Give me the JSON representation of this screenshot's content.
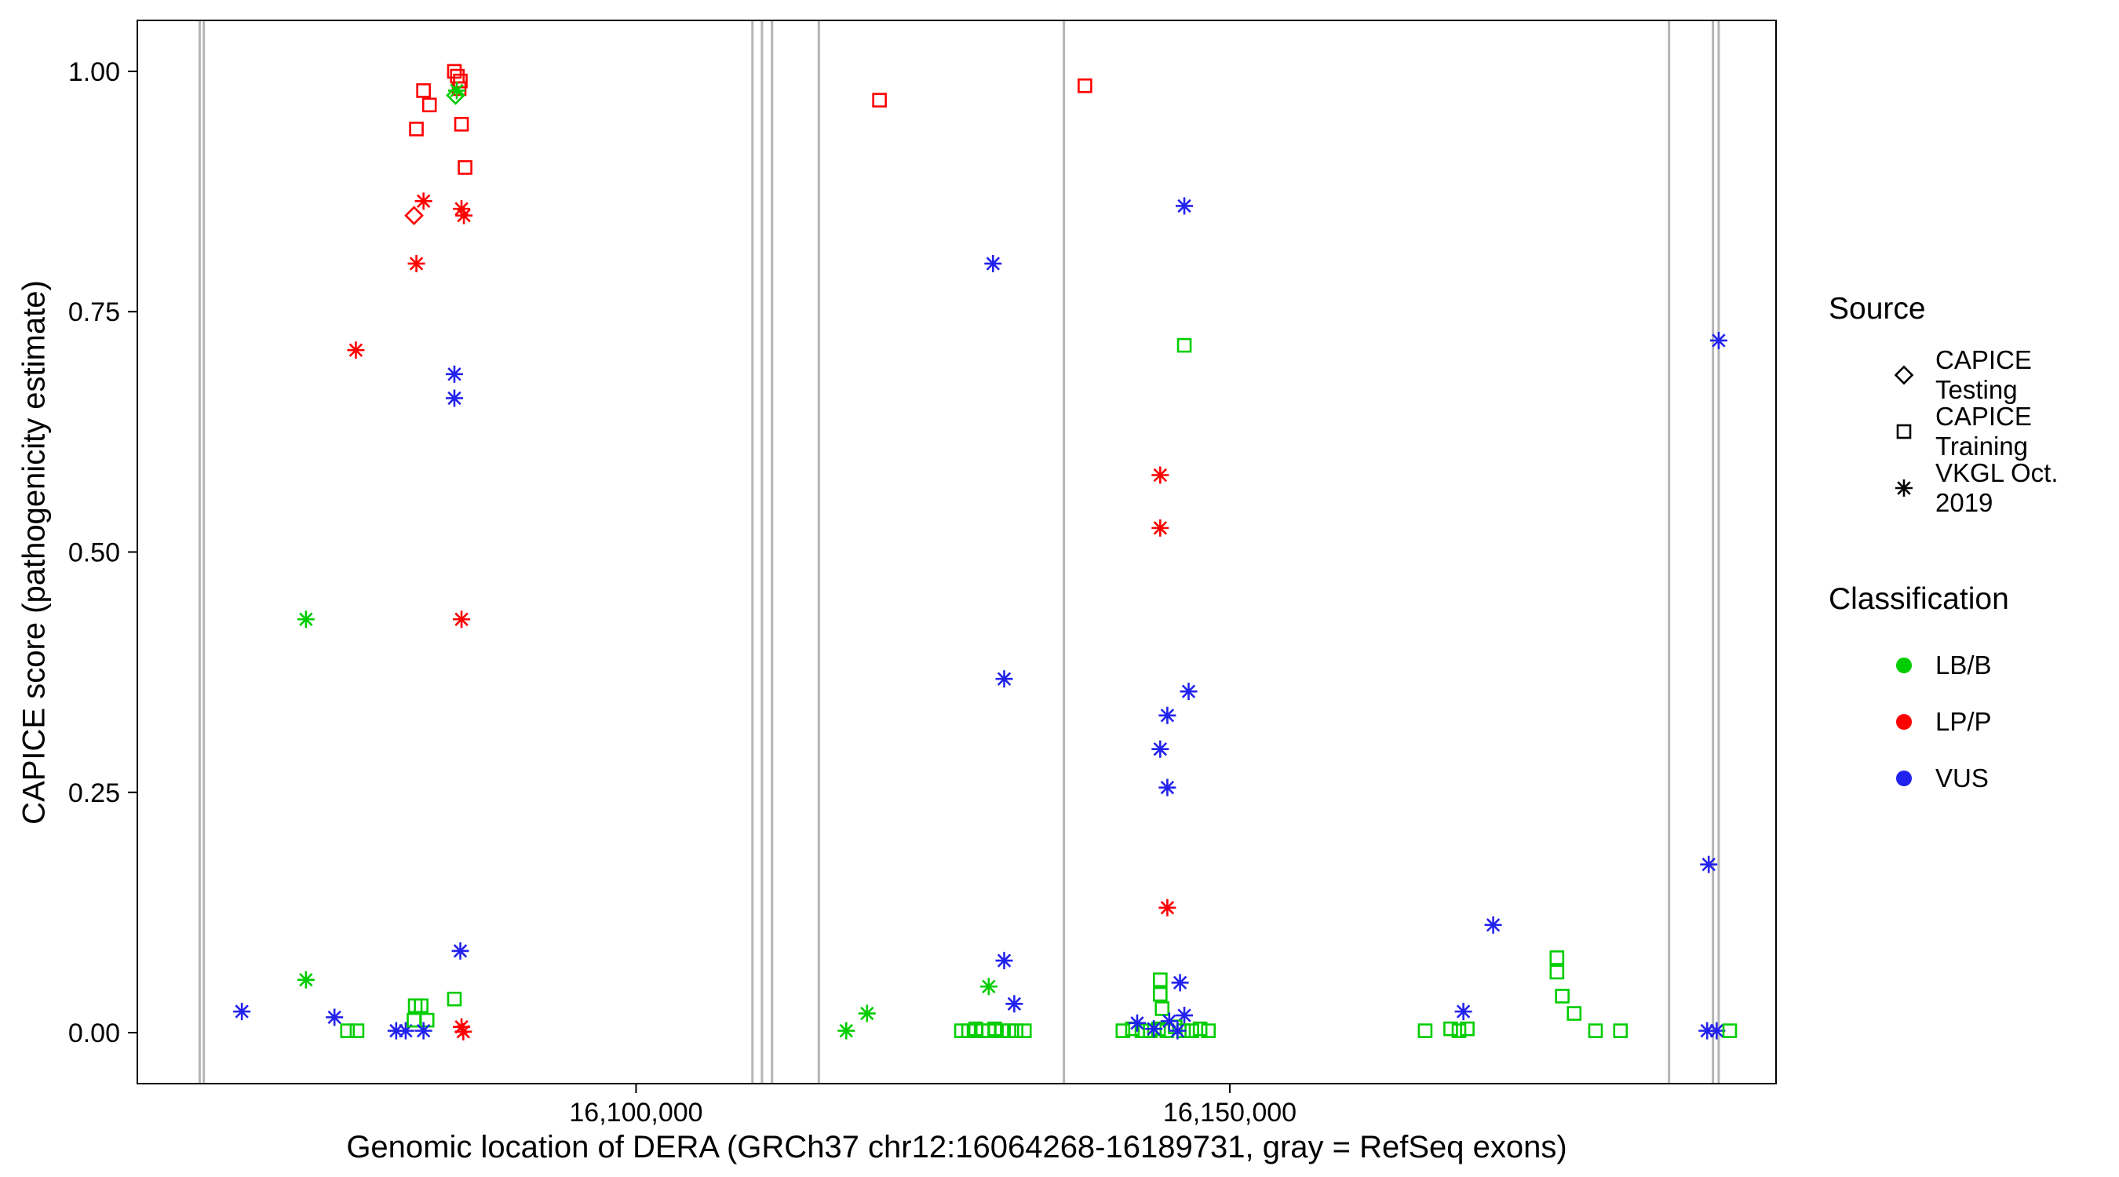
{
  "chart_data": {
    "type": "scatter",
    "title": "",
    "xlabel": "Genomic location of DERA (GRCh37 chr12:16064268-16189731, gray = RefSeq exons)",
    "ylabel": "CAPICE score (pathogenicity estimate)",
    "x_domain": [
      16058000,
      16196000
    ],
    "y_domain": [
      -0.053,
      1.053
    ],
    "x_ticks": [
      {
        "value": 16100000,
        "label": "16,100,000"
      },
      {
        "value": 16150000,
        "label": "16,150,000"
      }
    ],
    "y_ticks": [
      {
        "value": 0,
        "label": "0.00"
      },
      {
        "value": 0.25,
        "label": "0.25"
      },
      {
        "value": 0.5,
        "label": "0.50"
      },
      {
        "value": 0.75,
        "label": "0.75"
      },
      {
        "value": 1,
        "label": "1.00"
      }
    ],
    "exon_color": "#b5b5b5",
    "exon_positions": [
      16063250,
      16063600,
      16109800,
      16110600,
      16111450,
      16115390,
      16136030,
      16186990,
      16190690,
      16191170
    ],
    "colors": {
      "LB/B": "#00cd00",
      "LP/P": "#ff0000",
      "VUS": "#2222ee"
    },
    "shape_source_map": {
      "diamond": "CAPICE Testing",
      "square": "CAPICE Training",
      "asterisk": "VKGL Oct. 2019"
    },
    "points_format": [
      "genomic_position",
      "capice_score",
      "source_shape",
      "classification"
    ],
    "points": [
      [
        16081500,
        0.94,
        "square",
        "LP/P"
      ],
      [
        16082100,
        0.98,
        "square",
        "LP/P"
      ],
      [
        16082600,
        0.965,
        "square",
        "LP/P"
      ],
      [
        16084700,
        1.0,
        "square",
        "LP/P"
      ],
      [
        16084950,
        0.995,
        "square",
        "LP/P"
      ],
      [
        16085200,
        0.99,
        "square",
        "LP/P"
      ],
      [
        16085100,
        0.982,
        "square",
        "LP/P"
      ],
      [
        16085300,
        0.945,
        "square",
        "LP/P"
      ],
      [
        16085600,
        0.9,
        "square",
        "LP/P"
      ],
      [
        16084800,
        0.975,
        "diamond",
        "LB/B"
      ],
      [
        16084900,
        0.98,
        "asterisk",
        "LB/B"
      ],
      [
        16081300,
        0.85,
        "diamond",
        "LP/P"
      ],
      [
        16082100,
        0.865,
        "asterisk",
        "LP/P"
      ],
      [
        16085300,
        0.857,
        "asterisk",
        "LP/P"
      ],
      [
        16085500,
        0.85,
        "asterisk",
        "LP/P"
      ],
      [
        16081500,
        0.8,
        "asterisk",
        "LP/P"
      ],
      [
        16076400,
        0.71,
        "asterisk",
        "LP/P"
      ],
      [
        16072200,
        0.43,
        "asterisk",
        "LB/B"
      ],
      [
        16085300,
        0.43,
        "asterisk",
        "LP/P"
      ],
      [
        16084700,
        0.685,
        "asterisk",
        "VUS"
      ],
      [
        16084700,
        0.66,
        "asterisk",
        "VUS"
      ],
      [
        16066800,
        0.022,
        "asterisk",
        "VUS"
      ],
      [
        16072200,
        0.055,
        "asterisk",
        "LB/B"
      ],
      [
        16074600,
        0.016,
        "asterisk",
        "VUS"
      ],
      [
        16075700,
        0.002,
        "square",
        "LB/B"
      ],
      [
        16076500,
        0.002,
        "square",
        "LB/B"
      ],
      [
        16079800,
        0.002,
        "asterisk",
        "VUS"
      ],
      [
        16080600,
        0.002,
        "asterisk",
        "VUS"
      ],
      [
        16081400,
        0.028,
        "square",
        "LB/B"
      ],
      [
        16081900,
        0.028,
        "square",
        "LB/B"
      ],
      [
        16081300,
        0.013,
        "square",
        "LB/B"
      ],
      [
        16082400,
        0.013,
        "square",
        "LB/B"
      ],
      [
        16082100,
        0.002,
        "asterisk",
        "VUS"
      ],
      [
        16084700,
        0.035,
        "square",
        "LB/B"
      ],
      [
        16085200,
        0.085,
        "asterisk",
        "VUS"
      ],
      [
        16085300,
        0.006,
        "asterisk",
        "LP/P"
      ],
      [
        16085450,
        0.001,
        "asterisk",
        "LP/P"
      ],
      [
        16120500,
        0.97,
        "square",
        "LP/P"
      ],
      [
        16117700,
        0.002,
        "asterisk",
        "LB/B"
      ],
      [
        16119450,
        0.02,
        "asterisk",
        "LB/B"
      ],
      [
        16127400,
        0.002,
        "square",
        "LB/B"
      ],
      [
        16128000,
        0.002,
        "square",
        "LB/B"
      ],
      [
        16128600,
        0.004,
        "square",
        "LB/B"
      ],
      [
        16129200,
        0.002,
        "square",
        "LB/B"
      ],
      [
        16129700,
        0.002,
        "square",
        "LB/B"
      ],
      [
        16130200,
        0.004,
        "square",
        "LB/B"
      ],
      [
        16130800,
        0.002,
        "square",
        "LB/B"
      ],
      [
        16131400,
        0.002,
        "square",
        "LB/B"
      ],
      [
        16132000,
        0.002,
        "square",
        "LB/B"
      ],
      [
        16132700,
        0.002,
        "square",
        "LB/B"
      ],
      [
        16129700,
        0.048,
        "asterisk",
        "LB/B"
      ],
      [
        16131000,
        0.075,
        "asterisk",
        "VUS"
      ],
      [
        16131850,
        0.03,
        "asterisk",
        "VUS"
      ],
      [
        16131000,
        0.368,
        "asterisk",
        "VUS"
      ],
      [
        16130060,
        0.8,
        "asterisk",
        "VUS"
      ],
      [
        16137800,
        0.985,
        "square",
        "LP/P"
      ],
      [
        16146170,
        0.86,
        "asterisk",
        "VUS"
      ],
      [
        16146170,
        0.715,
        "square",
        "LB/B"
      ],
      [
        16144140,
        0.58,
        "asterisk",
        "LP/P"
      ],
      [
        16144140,
        0.525,
        "asterisk",
        "LP/P"
      ],
      [
        16146530,
        0.355,
        "asterisk",
        "VUS"
      ],
      [
        16144740,
        0.33,
        "asterisk",
        "VUS"
      ],
      [
        16144140,
        0.295,
        "asterisk",
        "VUS"
      ],
      [
        16144740,
        0.255,
        "asterisk",
        "VUS"
      ],
      [
        16144740,
        0.13,
        "asterisk",
        "LP/P"
      ],
      [
        16144140,
        0.055,
        "square",
        "LB/B"
      ],
      [
        16144140,
        0.04,
        "square",
        "LB/B"
      ],
      [
        16144300,
        0.025,
        "square",
        "LB/B"
      ],
      [
        16145810,
        0.052,
        "asterisk",
        "VUS"
      ],
      [
        16146170,
        0.018,
        "asterisk",
        "VUS"
      ],
      [
        16141000,
        0.002,
        "square",
        "LB/B"
      ],
      [
        16141800,
        0.004,
        "square",
        "LB/B"
      ],
      [
        16142600,
        0.002,
        "square",
        "LB/B"
      ],
      [
        16143300,
        0.002,
        "square",
        "LB/B"
      ],
      [
        16144000,
        0.004,
        "square",
        "LB/B"
      ],
      [
        16144700,
        0.002,
        "square",
        "LB/B"
      ],
      [
        16145400,
        0.006,
        "square",
        "LB/B"
      ],
      [
        16146100,
        0.002,
        "square",
        "LB/B"
      ],
      [
        16146800,
        0.002,
        "square",
        "LB/B"
      ],
      [
        16147500,
        0.004,
        "square",
        "LB/B"
      ],
      [
        16148200,
        0.002,
        "square",
        "LB/B"
      ],
      [
        16142200,
        0.01,
        "asterisk",
        "VUS"
      ],
      [
        16143600,
        0.004,
        "asterisk",
        "VUS"
      ],
      [
        16144900,
        0.012,
        "asterisk",
        "VUS"
      ],
      [
        16145600,
        0.002,
        "asterisk",
        "VUS"
      ],
      [
        16166450,
        0.002,
        "square",
        "LB/B"
      ],
      [
        16168600,
        0.004,
        "square",
        "LB/B"
      ],
      [
        16169300,
        0.002,
        "square",
        "LB/B"
      ],
      [
        16170000,
        0.004,
        "square",
        "LB/B"
      ],
      [
        16169670,
        0.022,
        "asterisk",
        "VUS"
      ],
      [
        16172180,
        0.112,
        "asterisk",
        "VUS"
      ],
      [
        16177550,
        0.078,
        "square",
        "LB/B"
      ],
      [
        16177550,
        0.063,
        "square",
        "LB/B"
      ],
      [
        16178000,
        0.038,
        "square",
        "LB/B"
      ],
      [
        16179000,
        0.02,
        "square",
        "LB/B"
      ],
      [
        16180800,
        0.002,
        "square",
        "LB/B"
      ],
      [
        16182900,
        0.002,
        "square",
        "LB/B"
      ],
      [
        16190330,
        0.175,
        "asterisk",
        "VUS"
      ],
      [
        16191170,
        0.72,
        "asterisk",
        "VUS"
      ],
      [
        16190200,
        0.002,
        "asterisk",
        "VUS"
      ],
      [
        16191000,
        0.002,
        "asterisk",
        "VUS"
      ],
      [
        16192100,
        0.002,
        "square",
        "LB/B"
      ]
    ]
  },
  "legend": {
    "source": {
      "title": "Source",
      "items": [
        {
          "label": "CAPICE Testing",
          "shape": "diamond"
        },
        {
          "label": "CAPICE Training",
          "shape": "square"
        },
        {
          "label": "VKGL Oct. 2019",
          "shape": "asterisk"
        }
      ]
    },
    "classification": {
      "title": "Classification",
      "items": [
        {
          "label": "LB/B",
          "color": "#00cd00"
        },
        {
          "label": "LP/P",
          "color": "#ff0000"
        },
        {
          "label": "VUS",
          "color": "#2222ee"
        }
      ]
    }
  }
}
